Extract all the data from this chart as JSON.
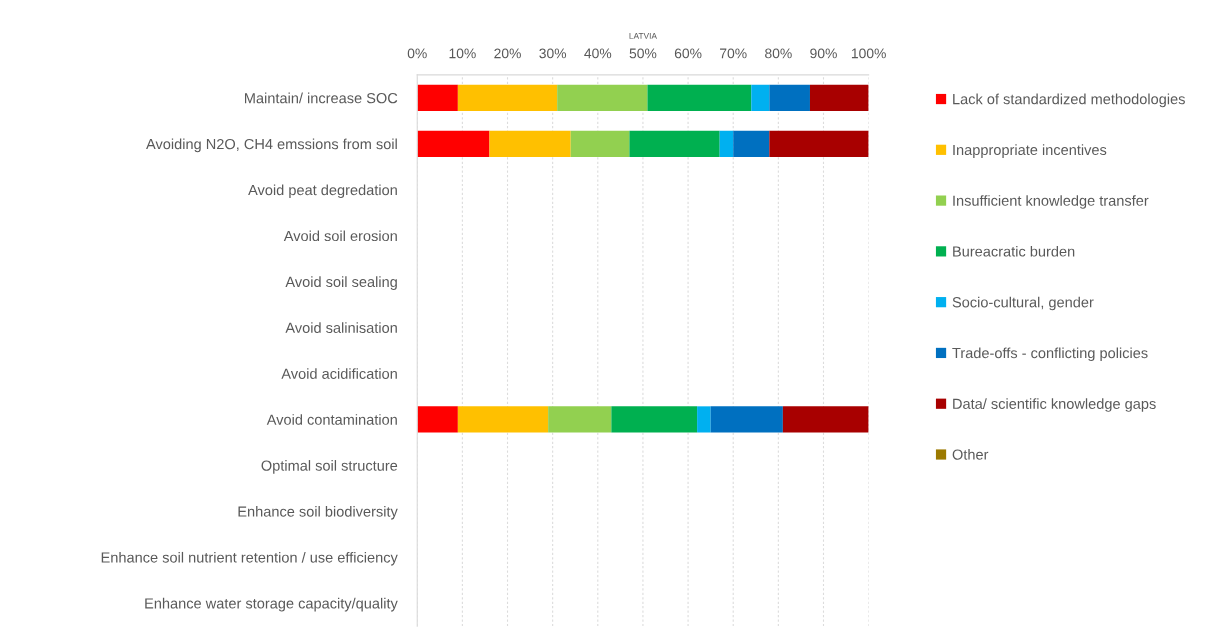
{
  "chart_data": {
    "type": "bar",
    "orientation": "horizontal",
    "stacked": true,
    "title": "LATVIA",
    "categories": [
      "Maintain/ increase SOC",
      "Avoiding N2O, CH4 emssions from soil",
      "Avoid peat degredation",
      "Avoid soil erosion",
      "Avoid soil sealing",
      "Avoid salinisation",
      "Avoid acidification",
      "Avoid contamination",
      "Optimal soil structure",
      "Enhance soil biodiversity",
      "Enhance soil nutrient retention / use efficiency",
      "Enhance water storage capacity/quality"
    ],
    "series": [
      {
        "name": "Lack of standardized methodologies",
        "color": "#ff0000",
        "values": [
          9,
          16,
          null,
          null,
          null,
          null,
          null,
          9,
          null,
          null,
          null,
          null
        ]
      },
      {
        "name": "Inappropriate incentives",
        "color": "#ffc000",
        "values": [
          22,
          18,
          null,
          null,
          null,
          null,
          null,
          20,
          null,
          null,
          null,
          null
        ]
      },
      {
        "name": "Insufficient knowledge transfer",
        "color": "#92d050",
        "values": [
          20,
          13,
          null,
          null,
          null,
          null,
          null,
          14,
          null,
          null,
          null,
          null
        ]
      },
      {
        "name": "Bureacratic burden",
        "color": "#00b050",
        "values": [
          23,
          20,
          null,
          null,
          null,
          null,
          null,
          19,
          null,
          null,
          null,
          null
        ]
      },
      {
        "name": "Socio-cultural, gender",
        "color": "#00b0f0",
        "values": [
          4,
          3,
          null,
          null,
          null,
          null,
          null,
          3,
          null,
          null,
          null,
          null
        ]
      },
      {
        "name": "Trade-offs - conflicting policies",
        "color": "#0070c0",
        "values": [
          9,
          8,
          null,
          null,
          null,
          null,
          null,
          16,
          null,
          null,
          null,
          null
        ]
      },
      {
        "name": "Data/ scientific knowledge gaps",
        "color": "#a80000",
        "values": [
          13,
          22,
          null,
          null,
          null,
          null,
          null,
          19,
          null,
          null,
          null,
          null
        ]
      },
      {
        "name": "Other",
        "color": "#9c7a00",
        "values": [
          null,
          null,
          null,
          null,
          null,
          null,
          null,
          null,
          null,
          null,
          null,
          null
        ]
      }
    ],
    "xlim": [
      0,
      100
    ],
    "xticks": [
      {
        "value": 0,
        "label": "0%"
      },
      {
        "value": 10,
        "label": "10%"
      },
      {
        "value": 20,
        "label": "20%"
      },
      {
        "value": 30,
        "label": "30%"
      },
      {
        "value": 40,
        "label": "40%"
      },
      {
        "value": 50,
        "label": "50%"
      },
      {
        "value": 60,
        "label": "60%"
      },
      {
        "value": 70,
        "label": "70%"
      },
      {
        "value": 80,
        "label": "80%"
      },
      {
        "value": 90,
        "label": "90%"
      },
      {
        "value": 100,
        "label": "100%"
      }
    ],
    "grid": "x",
    "legend": "right"
  }
}
